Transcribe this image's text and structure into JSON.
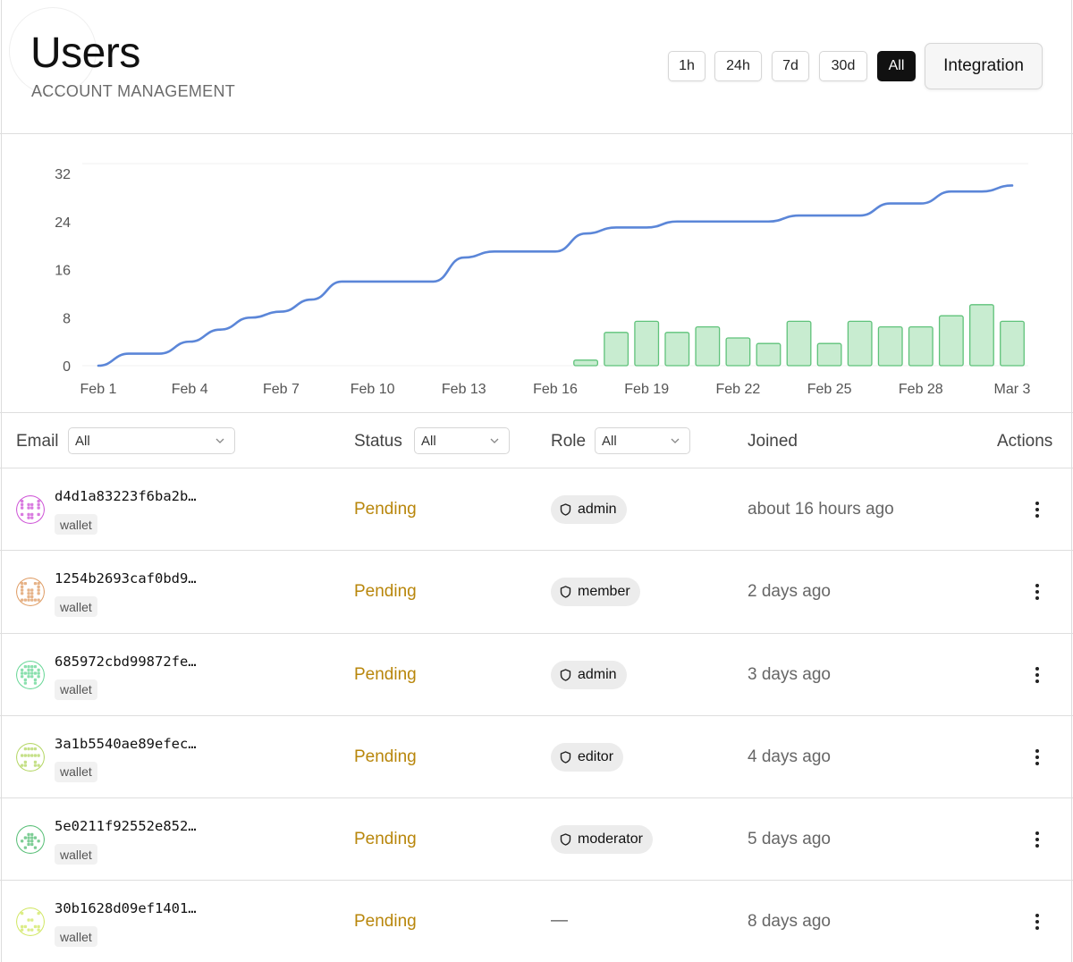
{
  "header": {
    "title": "Users",
    "subtitle": "ACCOUNT MANAGEMENT",
    "ranges": [
      "1h",
      "24h",
      "7d",
      "30d",
      "All"
    ],
    "active_range": "All",
    "integration_label": "Integration"
  },
  "chart_data": {
    "type": "line",
    "title": "",
    "xlabel": "",
    "ylabel": "",
    "x_tick_labels": [
      "Feb 1",
      "Feb 4",
      "Feb 7",
      "Feb 10",
      "Feb 13",
      "Feb 16",
      "Feb 19",
      "Feb 22",
      "Feb 25",
      "Feb 28",
      "Mar 3"
    ],
    "y_ticks": [
      0,
      8,
      16,
      24,
      32
    ],
    "ylim": [
      0,
      32
    ],
    "grid": "horizontal",
    "x_dates": [
      "Feb 1",
      "Feb 2",
      "Feb 3",
      "Feb 4",
      "Feb 5",
      "Feb 6",
      "Feb 7",
      "Feb 8",
      "Feb 9",
      "Feb 10",
      "Feb 11",
      "Feb 12",
      "Feb 13",
      "Feb 14",
      "Feb 15",
      "Feb 16",
      "Feb 17",
      "Feb 18",
      "Feb 19",
      "Feb 20",
      "Feb 21",
      "Feb 22",
      "Feb 23",
      "Feb 24",
      "Feb 25",
      "Feb 26",
      "Feb 27",
      "Feb 28",
      "Mar 1",
      "Mar 2",
      "Mar 3"
    ],
    "series": [
      {
        "kind": "line",
        "color": "#5b86d8",
        "values": [
          0,
          2,
          2,
          4,
          6,
          8,
          9,
          11,
          14,
          14,
          14,
          14,
          18,
          19,
          19,
          19,
          22,
          23,
          23,
          24,
          24,
          24,
          24,
          25,
          25,
          25,
          27,
          27,
          29,
          29,
          30
        ]
      },
      {
        "kind": "bar",
        "color": "#c8ecd0",
        "stroke": "#5fc27a",
        "start_date": "Feb 17",
        "dates": [
          "Feb 17",
          "Feb 18",
          "Feb 19",
          "Feb 20",
          "Feb 21",
          "Feb 22",
          "Feb 23",
          "Feb 24",
          "Feb 25",
          "Feb 26",
          "Feb 27",
          "Feb 28",
          "Mar 1",
          "Mar 2",
          "Mar 3"
        ],
        "values": [
          1,
          6,
          8,
          6,
          7,
          5,
          4,
          8,
          4,
          8,
          7,
          7,
          9,
          11,
          8
        ]
      }
    ]
  },
  "table": {
    "columns": {
      "email": "Email",
      "status": "Status",
      "role": "Role",
      "joined": "Joined",
      "actions": "Actions"
    },
    "filters": {
      "email": "All",
      "status": "All",
      "role": "All"
    },
    "rows": [
      {
        "email": "d4d1a83223f6ba2b…",
        "badge": "wallet",
        "status": "Pending",
        "role": "admin",
        "joined": "about 16 hours ago",
        "avatar_color": "#d05ad8"
      },
      {
        "email": "1254b2693caf0bd9…",
        "badge": "wallet",
        "status": "Pending",
        "role": "member",
        "joined": "2 days ago",
        "avatar_color": "#e0a06a"
      },
      {
        "email": "685972cbd99872fe…",
        "badge": "wallet",
        "status": "Pending",
        "role": "admin",
        "joined": "3 days ago",
        "avatar_color": "#6dd89a"
      },
      {
        "email": "3a1b5540ae89efec…",
        "badge": "wallet",
        "status": "Pending",
        "role": "editor",
        "joined": "4 days ago",
        "avatar_color": "#b7d86a"
      },
      {
        "email": "5e0211f92552e852…",
        "badge": "wallet",
        "status": "Pending",
        "role": "moderator",
        "joined": "5 days ago",
        "avatar_color": "#5cc07a"
      },
      {
        "email": "30b1628d09ef1401…",
        "badge": "wallet",
        "status": "Pending",
        "role": "—",
        "joined": "8 days ago",
        "avatar_color": "#d3e86a"
      }
    ]
  }
}
